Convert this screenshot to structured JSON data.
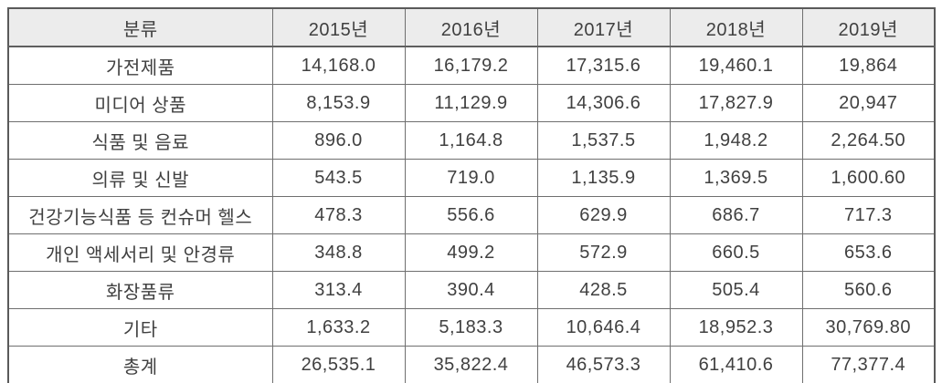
{
  "table": {
    "columns": [
      "분류",
      "2015년",
      "2016년",
      "2017년",
      "2018년",
      "2019년"
    ],
    "rows": [
      {
        "label": "가전제품",
        "values": [
          "14,168.0",
          "16,179.2",
          "17,315.6",
          "19,460.1",
          "19,864"
        ]
      },
      {
        "label": "미디어 상품",
        "values": [
          "8,153.9",
          "11,129.9",
          "14,306.6",
          "17,827.9",
          "20,947"
        ]
      },
      {
        "label": "식품 및 음료",
        "values": [
          "896.0",
          "1,164.8",
          "1,537.5",
          "1,948.2",
          "2,264.50"
        ]
      },
      {
        "label": "의류 및 신발",
        "values": [
          "543.5",
          "719.0",
          "1,135.9",
          "1,369.5",
          "1,600.60"
        ]
      },
      {
        "label": "건강기능식품 등 컨슈머 헬스",
        "values": [
          "478.3",
          "556.6",
          "629.9",
          "686.7",
          "717.3"
        ]
      },
      {
        "label": "개인 액세서리 및 안경류",
        "values": [
          "348.8",
          "499.2",
          "572.9",
          "660.5",
          "653.6"
        ]
      },
      {
        "label": "화장품류",
        "values": [
          "313.4",
          "390.4",
          "428.5",
          "505.4",
          "560.6"
        ]
      },
      {
        "label": "기타",
        "values": [
          "1,633.2",
          "5,183.3",
          "10,646.4",
          "18,952.3",
          "30,769.80"
        ]
      },
      {
        "label": "총계",
        "values": [
          "26,535.1",
          "35,822.4",
          "46,573.3",
          "61,410.6",
          "77,377.4"
        ]
      }
    ]
  },
  "colors": {
    "header_bg": "#ececec",
    "border": "#6f6f6f",
    "outer_border": "#5a5a5a",
    "text": "#404040",
    "cell_bg": "#ffffff"
  }
}
